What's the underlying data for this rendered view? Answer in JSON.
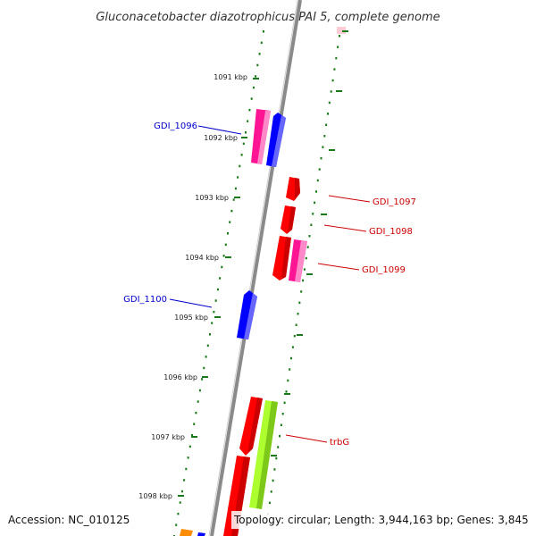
{
  "title": "Gluconacetobacter diazotrophicus PAI 5, complete genome",
  "footer": {
    "accession": "Accession: NC_010125",
    "summary": "Topology: circular; Length: 3,944,163 bp; Genes: 3,845"
  },
  "ticks": [
    {
      "label": "1091 kbp"
    },
    {
      "label": "1092 kbp"
    },
    {
      "label": "1093 kbp"
    },
    {
      "label": "1094 kbp"
    },
    {
      "label": "1095 kbp"
    },
    {
      "label": "1096 kbp"
    },
    {
      "label": "1097 kbp"
    },
    {
      "label": "1098 kbp"
    }
  ],
  "gene_labels": [
    {
      "name": "GDI_1096",
      "strand": "forward",
      "color": "#0000cc"
    },
    {
      "name": "GDI_1097",
      "strand": "reverse",
      "color": "#cc0000"
    },
    {
      "name": "GDI_1098",
      "strand": "reverse",
      "color": "#cc0000"
    },
    {
      "name": "GDI_1099",
      "strand": "reverse",
      "color": "#cc0000"
    },
    {
      "name": "GDI_1100",
      "strand": "forward",
      "color": "#0000cc"
    },
    {
      "name": "trbG",
      "strand": "reverse",
      "color": "#cc0000"
    }
  ],
  "colors": {
    "backbone": "#888888",
    "gc_skew_dots": "#1a7a1a",
    "forward_cds": "#0000ff",
    "reverse_cds": "#ff0000",
    "magenta_cds": "#ff1493",
    "lime_cds": "#adff2f",
    "orange_cds": "#ff8c00"
  }
}
